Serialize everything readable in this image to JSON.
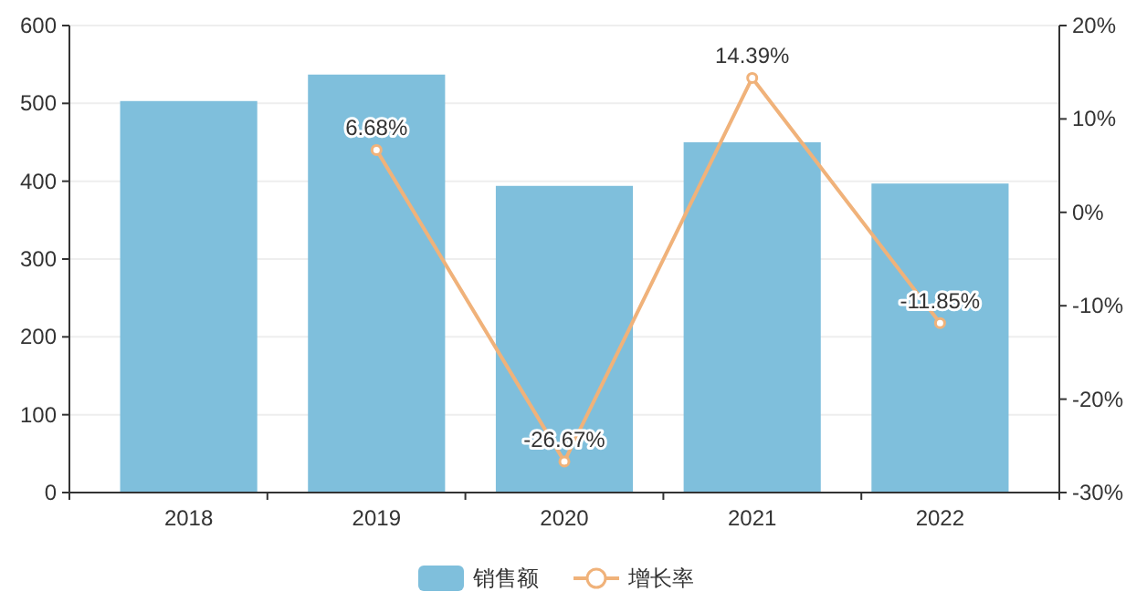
{
  "chart_data": {
    "type": "bar",
    "categories": [
      "2018",
      "2019",
      "2020",
      "2021",
      "2022"
    ],
    "series": [
      {
        "name": "销售额",
        "color": "#7fbfdc",
        "values": [
          503,
          537,
          394,
          450,
          397
        ]
      },
      {
        "name": "增长率",
        "type": "line",
        "axis": "y2",
        "color": "#f0b27a",
        "marker": "circle",
        "values": [
          null,
          6.68,
          -26.67,
          14.39,
          -11.85
        ],
        "value_labels": [
          null,
          "6.68%",
          "-26.67%",
          "14.39%",
          "-11.85%"
        ]
      }
    ],
    "ylim": [
      0,
      600
    ],
    "yticks": [
      0,
      100,
      200,
      300,
      400,
      500,
      600
    ],
    "y2lim": [
      -30,
      20
    ],
    "y2ticks": [
      {
        "value": -30,
        "label": "-30%"
      },
      {
        "value": -20,
        "label": "-20%"
      },
      {
        "value": -10,
        "label": "-10%"
      },
      {
        "value": 0,
        "label": "0%"
      },
      {
        "value": 10,
        "label": "10%"
      },
      {
        "value": 20,
        "label": "20%"
      }
    ],
    "grid": "y",
    "legend": "bottom"
  }
}
